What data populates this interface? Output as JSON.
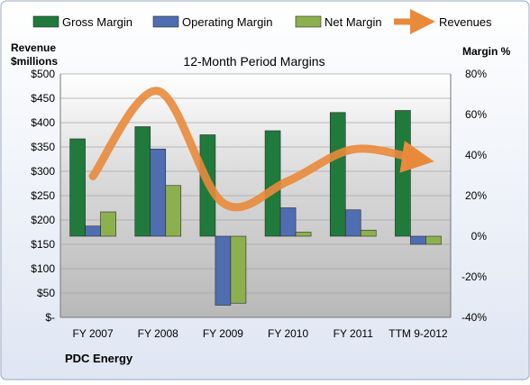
{
  "chart_data": {
    "type": "bar",
    "title": "12-Month Period Margins",
    "company": "PDC Energy",
    "left_axis_label_line1": "Revenue",
    "left_axis_label_line2": "$millions",
    "right_axis_label": "Margin %",
    "categories": [
      "FY 2007",
      "FY 2008",
      "FY 2009",
      "FY 2010",
      "FY 2011",
      "TTM 9-2012"
    ],
    "left_ticks": [
      "$500",
      "$450",
      "$400",
      "$350",
      "$300",
      "$250",
      "$200",
      "$150",
      "$100",
      "$50",
      "$-"
    ],
    "right_ticks": [
      "80%",
      "60%",
      "40%",
      "20%",
      "0%",
      "-20%",
      "-40%"
    ],
    "ylim_revenue": [
      0,
      500
    ],
    "ylim_margin_pct": [
      -40,
      80
    ],
    "grid": true,
    "legend_position": "top",
    "series": [
      {
        "name": "Gross Margin",
        "axis": "right",
        "kind": "bar",
        "color": "#1F7A3C",
        "values": [
          48,
          54,
          50,
          52,
          61,
          62
        ]
      },
      {
        "name": "Operating Margin",
        "axis": "right",
        "kind": "bar",
        "color": "#4F6DB1",
        "values": [
          5,
          43,
          -34,
          14,
          13,
          -4
        ]
      },
      {
        "name": "Net Margin",
        "axis": "right",
        "kind": "bar",
        "color": "#8DB04E",
        "values": [
          12,
          25,
          -33,
          2,
          3,
          -4
        ]
      },
      {
        "name": "Revenues",
        "axis": "left",
        "kind": "line",
        "color": "#E98A3B",
        "values": [
          290,
          465,
          235,
          280,
          345,
          325
        ]
      }
    ]
  }
}
